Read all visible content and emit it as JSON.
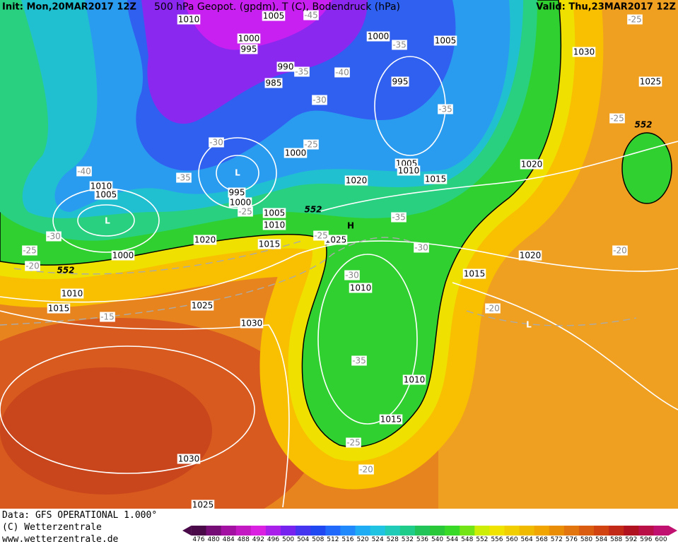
{
  "header": {
    "init": "Init: Mon,20MAR2017 12Z",
    "title": "500 hPa Geopot. (gpdm), T (C), Bodendruck (hPa)",
    "valid": "Valid: Thu,23MAR2017 12Z"
  },
  "map": {
    "pressure_labels": [
      "1010",
      "1005",
      "1000",
      "995",
      "990",
      "985",
      "1000",
      "1005",
      "1030",
      "1025",
      "995",
      "1005",
      "1010",
      "1015",
      "1020",
      "1020",
      "1000",
      "1010",
      "1005",
      "995",
      "1000",
      "1005",
      "1010",
      "1015",
      "1020",
      "1025",
      "1000",
      "1010",
      "1015",
      "1025",
      "1030",
      "1020",
      "1015",
      "1010",
      "1010",
      "1015",
      "1030",
      "1025"
    ],
    "temperature_labels": [
      "-45",
      "-35",
      "-35",
      "-40",
      "-30",
      "-35",
      "-25",
      "-30",
      "-40",
      "-35",
      "-25",
      "-35",
      "-25",
      "-30",
      "-25",
      "-20",
      "-30",
      "-30",
      "-20",
      "-25",
      "-25",
      "-20",
      "-15",
      "-35",
      "-25",
      "-20"
    ],
    "height_labels": [
      "552",
      "552",
      "552"
    ],
    "centers": [
      "H",
      "L",
      "L",
      "L"
    ]
  },
  "footer": {
    "data": "Data: GFS OPERATIONAL 1.000°",
    "copyright": "(C) Wetterzentrale",
    "url": "www.wetterzentrale.de"
  },
  "legend": {
    "scale": [
      476,
      480,
      484,
      488,
      492,
      496,
      500,
      504,
      508,
      512,
      516,
      520,
      524,
      528,
      532,
      536,
      540,
      544,
      548,
      552,
      556,
      560,
      564,
      568,
      572,
      576,
      580,
      584,
      588,
      592,
      596,
      600
    ]
  }
}
